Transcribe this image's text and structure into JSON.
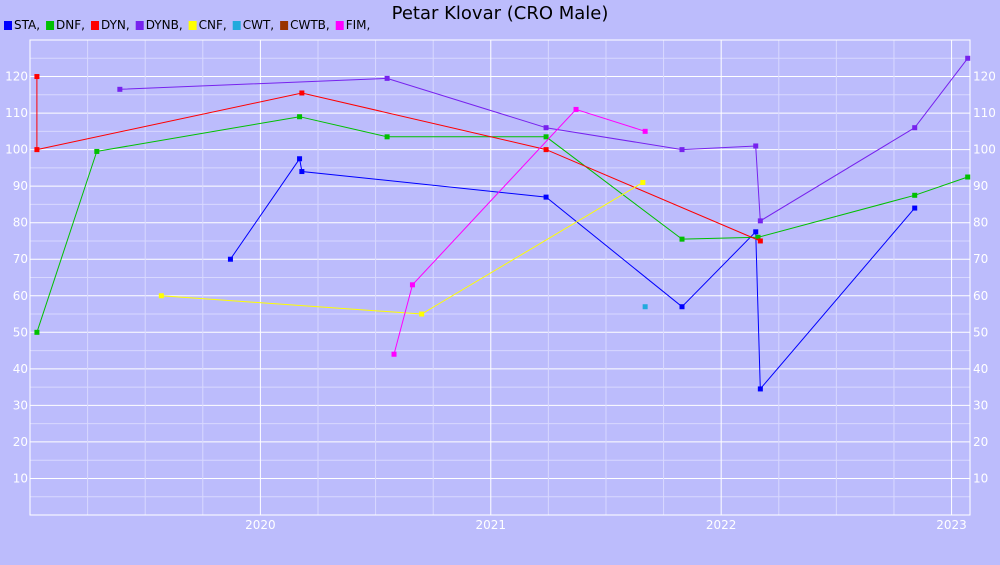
{
  "chart_data": {
    "type": "line",
    "title": "Petar Klovar (CRO Male)",
    "xlabel": "",
    "ylabel": "",
    "xlim": [
      2019.0,
      2023.08
    ],
    "ylim": [
      0,
      130
    ],
    "x_ticks": [
      {
        "value": 2020,
        "label": "2020"
      },
      {
        "value": 2021,
        "label": "2021"
      },
      {
        "value": 2022,
        "label": "2022"
      },
      {
        "value": 2023,
        "label": "2023"
      }
    ],
    "y_ticks": [
      {
        "value": 10,
        "label": "10"
      },
      {
        "value": 20,
        "label": "20"
      },
      {
        "value": 30,
        "label": "30"
      },
      {
        "value": 40,
        "label": "40"
      },
      {
        "value": 50,
        "label": "50"
      },
      {
        "value": 60,
        "label": "60"
      },
      {
        "value": 70,
        "label": "70"
      },
      {
        "value": 80,
        "label": "80"
      },
      {
        "value": 90,
        "label": "90"
      },
      {
        "value": 100,
        "label": "100"
      },
      {
        "value": 110,
        "label": "110"
      },
      {
        "value": 120,
        "label": "120"
      }
    ],
    "grid": true,
    "legend_position": "top-left",
    "series": [
      {
        "name": "STA,",
        "color": "#0000ff",
        "points": [
          [
            2019.87,
            70
          ],
          [
            2020.17,
            97.5
          ],
          [
            2020.18,
            94
          ],
          [
            2021.24,
            87
          ],
          [
            2021.83,
            57
          ],
          [
            2022.15,
            77.5
          ],
          [
            2022.17,
            34.5
          ],
          [
            2022.84,
            84
          ]
        ]
      },
      {
        "name": "DNF,",
        "color": "#00c000",
        "points": [
          [
            2019.03,
            50
          ],
          [
            2019.29,
            99.5
          ],
          [
            2020.17,
            109
          ],
          [
            2020.55,
            103.5
          ],
          [
            2021.24,
            103.5
          ],
          [
            2021.83,
            75.5
          ],
          [
            2022.16,
            76
          ],
          [
            2022.84,
            87.5
          ],
          [
            2023.07,
            92.5
          ]
        ]
      },
      {
        "name": "DYN,",
        "color": "#ff0000",
        "points": [
          [
            2019.03,
            120
          ],
          [
            2019.03,
            100
          ],
          [
            2020.18,
            115.5
          ],
          [
            2021.24,
            100
          ],
          [
            2022.17,
            75
          ]
        ]
      },
      {
        "name": "DYNB,",
        "color": "#7722ee",
        "points": [
          [
            2019.39,
            116.5
          ],
          [
            2020.55,
            119.5
          ],
          [
            2021.24,
            106
          ],
          [
            2021.83,
            100
          ],
          [
            2022.15,
            101
          ],
          [
            2022.17,
            80.5
          ],
          [
            2022.84,
            106
          ],
          [
            2023.07,
            125
          ]
        ]
      },
      {
        "name": "CNF,",
        "color": "#ffff00",
        "points": [
          [
            2019.57,
            60
          ],
          [
            2020.7,
            55
          ],
          [
            2021.66,
            91
          ]
        ]
      },
      {
        "name": "CWT,",
        "color": "#22aadd",
        "points": [
          [
            2021.67,
            57
          ]
        ]
      },
      {
        "name": "CWTB,",
        "color": "#993300",
        "points": []
      },
      {
        "name": "FIM,",
        "color": "#ff00ff",
        "points": [
          [
            2020.58,
            44
          ],
          [
            2020.66,
            63
          ],
          [
            2021.37,
            111
          ],
          [
            2021.67,
            105
          ]
        ]
      }
    ]
  }
}
